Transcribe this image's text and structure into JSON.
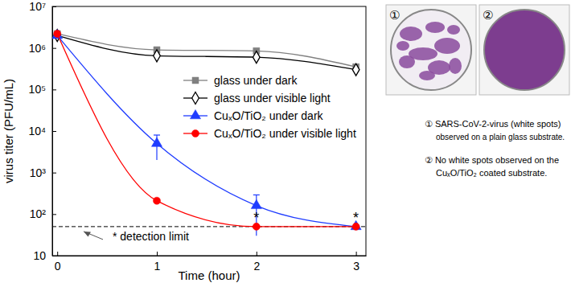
{
  "chart_data": {
    "type": "line",
    "x_label": "Time (hour)",
    "y_label": "virus titer (PFU/mL)",
    "x": [
      0,
      1,
      2,
      3
    ],
    "xlim": [
      -0.05,
      3.1
    ],
    "xticks": [
      0,
      1,
      2,
      3
    ],
    "ylim": [
      10,
      10000000
    ],
    "yticks": [
      10,
      {
        "value": 100,
        "label": "10²"
      },
      {
        "value": 1000,
        "label": "10³"
      },
      {
        "value": 10000,
        "label": "10⁴"
      },
      {
        "value": 100000,
        "label": "10⁵"
      },
      {
        "value": 1000000,
        "label": "10⁶"
      },
      {
        "value": 10000000,
        "label": "10⁷"
      }
    ],
    "log": "y",
    "grid": false,
    "legend": "right",
    "series": [
      {
        "name": "glass under dark",
        "color": "#808080",
        "marker": "square",
        "line_style": "solid",
        "values": [
          2200000,
          900000,
          850000,
          350000
        ]
      },
      {
        "name": "glass under visible light",
        "color": "#000000",
        "marker": "open-diamond",
        "line_style": "solid",
        "values": [
          2000000,
          650000,
          600000,
          300000
        ]
      },
      {
        "name": "CuₓO/TiO₂ under dark",
        "color": "#1f3cff",
        "marker": "triangle",
        "line_style": "solid",
        "values": [
          2000000,
          5000,
          160,
          50
        ],
        "errors": [
          null,
          3000,
          130,
          null
        ]
      },
      {
        "name": "CuₓO/TiO₂ under visible light",
        "color": "#ff0000",
        "marker": "circle",
        "line_style": "solid",
        "values": [
          2200000,
          210,
          50,
          50
        ]
      }
    ],
    "detection_limit": {
      "value": 50,
      "label": "* detection limit"
    },
    "annotations": [
      {
        "text": "*",
        "x": 2,
        "y": 90
      },
      {
        "text": "*",
        "x": 3,
        "y": 90
      }
    ]
  },
  "images": [
    {
      "label": "①"
    },
    {
      "label": "②"
    }
  ],
  "notes": [
    [
      "① SARS-CoV-2-virus (white spots)",
      "observed on a plain glass substrate."
    ],
    [
      "② No white spots observed on the",
      "CuₓO/TiO₂ coated substrate."
    ]
  ]
}
